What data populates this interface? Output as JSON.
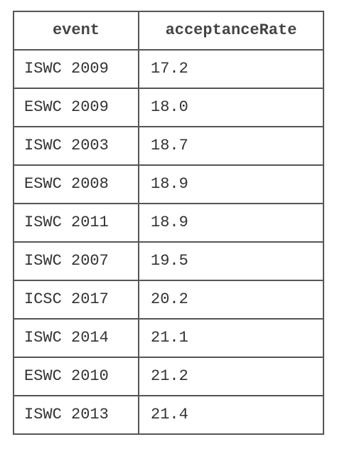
{
  "table": {
    "columns": [
      "event",
      "acceptanceRate"
    ],
    "rows": [
      {
        "event": "ISWC 2009",
        "acceptanceRate": "17.2"
      },
      {
        "event": "ESWC 2009",
        "acceptanceRate": "18.0"
      },
      {
        "event": "ISWC 2003",
        "acceptanceRate": "18.7"
      },
      {
        "event": "ESWC 2008",
        "acceptanceRate": "18.9"
      },
      {
        "event": "ISWC 2011",
        "acceptanceRate": "18.9"
      },
      {
        "event": "ISWC 2007",
        "acceptanceRate": "19.5"
      },
      {
        "event": "ICSC 2017",
        "acceptanceRate": "20.2"
      },
      {
        "event": "ISWC 2014",
        "acceptanceRate": "21.1"
      },
      {
        "event": "ESWC 2010",
        "acceptanceRate": "21.2"
      },
      {
        "event": "ISWC 2013",
        "acceptanceRate": "21.4"
      }
    ]
  }
}
